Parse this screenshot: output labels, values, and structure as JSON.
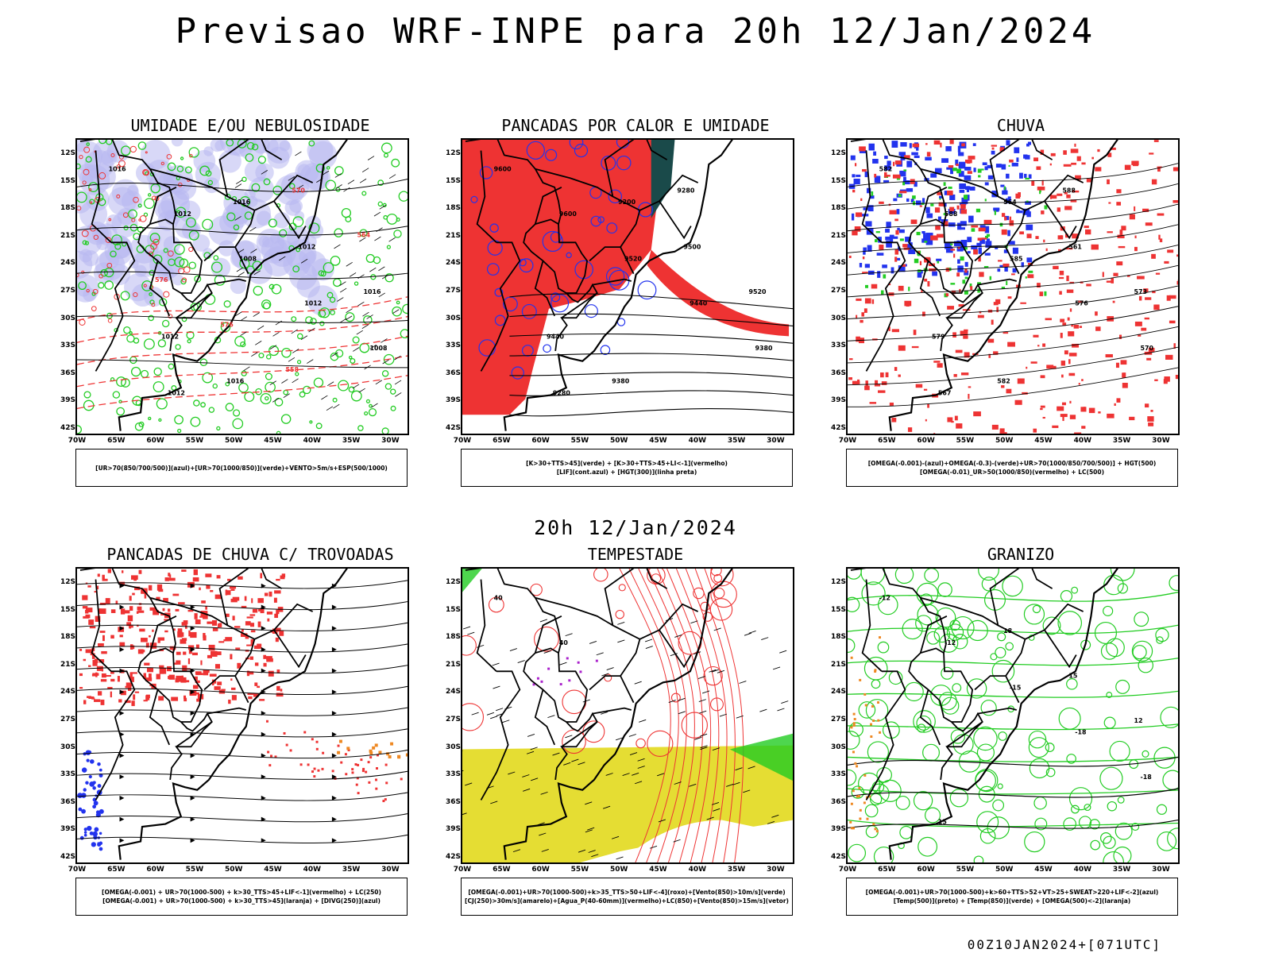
{
  "main_title": "Previsao WRF-INPE  para 20h 12/Jan/2024",
  "mid_title": "20h 12/Jan/2024",
  "footer": "00Z10JAN2024+[071UTC]",
  "lat_labels": [
    "12S",
    "15S",
    "18S",
    "21S",
    "24S",
    "27S",
    "30S",
    "33S",
    "36S",
    "39S",
    "42S"
  ],
  "lon_labels": [
    "70W",
    "65W",
    "60W",
    "55W",
    "50W",
    "45W",
    "40W",
    "35W",
    "30W"
  ],
  "colors": {
    "blue": "#2233ee",
    "green": "#22cc22",
    "red": "#ee3333",
    "orange": "#ee8822",
    "yellow": "#e5dd33",
    "lavender": "#b8b8f0",
    "teal": "#1a4a4a",
    "purple": "#aa22cc"
  },
  "panels": [
    {
      "title": "UMIDADE E/OU NEBULOSIDADE",
      "legend": [
        "[UR>70(850/700/500)](azul)+[UR>70(1000/850)](verde)+VENTO>5m/s+ESP(500/1000)"
      ],
      "contour_labels": [
        "1016",
        "1012",
        "1008",
        "1012",
        "1008",
        "1012",
        "1016",
        "1012",
        "1016",
        "1012",
        "1016",
        "570",
        "564",
        "576",
        "576",
        "558"
      ]
    },
    {
      "title": "PANCADAS POR CALOR E UMIDADE",
      "legend": [
        "[K>30+TTS>45](verde) + [K>30+TTS>45+LI<-1](vermelho)",
        "[LIF](cont.azul) + [HGT(300)](linha preta)"
      ],
      "contour_labels": [
        "9600",
        "9600",
        "9520",
        "9440",
        "9380",
        "9280",
        "9200",
        "9500",
        "9520",
        "9440",
        "9380",
        "9280"
      ]
    },
    {
      "title": "CHUVA",
      "legend": [
        "[OMEGA(-0.001)-(azul)+OMEGA(-0.3)-(verde)+UR>70(1000/850/700/500)] + HGT(500)",
        "[OMEGA(-0.01)_UR>50(1000/850)(vermelho) + LC(500)"
      ],
      "contour_labels": [
        "582",
        "588",
        "585",
        "576",
        "570",
        "567",
        "564",
        "561",
        "573",
        "579",
        "582",
        "588"
      ]
    },
    {
      "title": "PANCADAS DE CHUVA C/ TROVOADAS",
      "legend": [
        "[OMEGA(-0.001) + UR>70(1000-500) + k>30_TTS>45+LIF<-1](vermelho) + LC(250)",
        "[OMEGA(-0.001) + UR>70(1000-500) + k>30_TTS>45](laranja) + [DIVG(250)](azul)"
      ],
      "contour_labels": []
    },
    {
      "title": "TEMPESTADE",
      "legend": [
        "[OMEGA(-0.001)+UR>70(1000-500)+k>35_TTS>50+LIF<-4](roxo)+[Vento(850)>10m/s](verde)",
        "[CJ(250)>30m/s](amarelo)+[Agua_P(40-60mm)](vermelho)+LC(850)+[Vento(850)>15m/s](vetor)"
      ],
      "contour_labels": [
        "40",
        "40"
      ]
    },
    {
      "title": "GRANIZO",
      "legend": [
        "[OMEGA(-0.001)+UR>70(1000-500)+k>60+TTS>52+VT>25+SWEAT>220+LIF<-2](azul)",
        "[Temp(500)](preto) + [Temp(850)](verde) + [OMEGA(500)<-2](laranja)"
      ],
      "contour_labels": [
        "-12",
        "-12",
        "-15",
        "-18",
        "-18",
        "15",
        "18",
        "15",
        "12"
      ]
    }
  ]
}
